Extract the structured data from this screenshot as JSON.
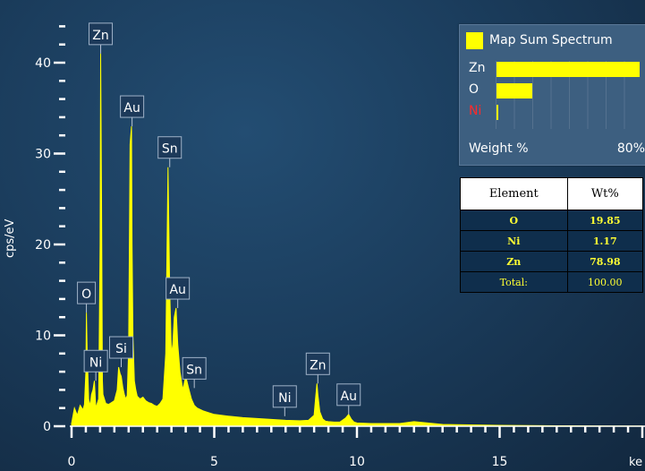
{
  "chart_data": {
    "type": "line",
    "title": "",
    "xlabel": "ke",
    "ylabel": "cps/eV",
    "xlim": [
      0,
      20
    ],
    "ylim": [
      0,
      45
    ],
    "x_ticks": [
      0,
      5,
      10,
      15
    ],
    "y_ticks": [
      0,
      10,
      20,
      30,
      40
    ],
    "series": [
      {
        "name": "Map Sum Spectrum",
        "color": "#ffff00",
        "x": [
          0.0,
          0.1,
          0.2,
          0.3,
          0.4,
          0.45,
          0.5,
          0.52,
          0.55,
          0.6,
          0.65,
          0.7,
          0.75,
          0.8,
          0.85,
          0.9,
          0.95,
          1.0,
          1.02,
          1.05,
          1.08,
          1.1,
          1.15,
          1.2,
          1.3,
          1.4,
          1.5,
          1.6,
          1.65,
          1.7,
          1.74,
          1.8,
          1.85,
          1.9,
          1.95,
          2.0,
          2.05,
          2.1,
          2.12,
          2.15,
          2.2,
          2.25,
          2.3,
          2.4,
          2.5,
          2.6,
          2.7,
          2.8,
          2.9,
          3.0,
          3.1,
          3.2,
          3.3,
          3.38,
          3.44,
          3.5,
          3.55,
          3.6,
          3.66,
          3.72,
          3.8,
          3.9,
          4.0,
          4.1,
          4.2,
          4.3,
          4.4,
          4.6,
          4.8,
          5.0,
          5.5,
          6.0,
          6.5,
          7.0,
          7.5,
          8.0,
          8.3,
          8.5,
          8.55,
          8.6,
          8.63,
          8.7,
          8.8,
          8.9,
          9.0,
          9.2,
          9.4,
          9.6,
          9.71,
          9.8,
          9.9,
          10.0,
          10.5,
          11.0,
          11.5,
          12.0,
          13.0,
          14.0,
          15.0,
          16.0,
          17.0,
          18.0,
          19.0,
          20.0
        ],
        "y": [
          0.3,
          2.0,
          1.2,
          2.3,
          1.8,
          2.4,
          6.0,
          12.5,
          8.0,
          3.0,
          2.2,
          3.5,
          4.0,
          5.0,
          2.0,
          2.5,
          3.0,
          20.0,
          41.0,
          25.0,
          5.0,
          3.5,
          3.0,
          2.5,
          2.4,
          2.6,
          2.8,
          4.0,
          6.5,
          5.8,
          5.5,
          4.2,
          3.5,
          3.0,
          3.4,
          8.5,
          31.0,
          33.0,
          20.0,
          10.0,
          5.0,
          4.0,
          3.3,
          3.0,
          3.2,
          2.8,
          2.6,
          2.5,
          2.3,
          2.2,
          2.5,
          3.0,
          8.0,
          28.5,
          15.0,
          8.0,
          9.0,
          12.0,
          13.0,
          9.0,
          6.0,
          4.0,
          5.5,
          4.2,
          3.0,
          2.3,
          2.0,
          1.7,
          1.5,
          1.3,
          1.1,
          0.95,
          0.85,
          0.75,
          0.65,
          0.6,
          0.65,
          1.2,
          3.0,
          4.7,
          3.5,
          1.6,
          0.8,
          0.55,
          0.5,
          0.45,
          0.45,
          0.9,
          1.3,
          0.8,
          0.45,
          0.35,
          0.3,
          0.3,
          0.3,
          0.5,
          0.2,
          0.15,
          0.1,
          0.08,
          0.05,
          0.04,
          0.03,
          0.02
        ]
      }
    ],
    "peak_labels": [
      {
        "text": "Zn",
        "x": 1.02,
        "y": 41.0
      },
      {
        "text": "Au",
        "x": 2.12,
        "y": 33.0
      },
      {
        "text": "Sn",
        "x": 3.44,
        "y": 28.5
      },
      {
        "text": "O",
        "x": 0.52,
        "y": 12.5
      },
      {
        "text": "Au",
        "x": 3.72,
        "y": 13.0
      },
      {
        "text": "Ni",
        "x": 0.85,
        "y": 5.0
      },
      {
        "text": "Si",
        "x": 1.74,
        "y": 6.5
      },
      {
        "text": "Sn",
        "x": 4.3,
        "y": 4.2
      },
      {
        "text": "Ni",
        "x": 7.47,
        "y": 1.1
      },
      {
        "text": "Zn",
        "x": 8.63,
        "y": 4.7
      },
      {
        "text": "Au",
        "x": 9.71,
        "y": 1.3
      }
    ],
    "grid": false,
    "legend": {
      "title": "Map Sum Spectrum",
      "placement": "top-right",
      "axis_label": "Weight %",
      "axis_max_label": "80%",
      "axis_max": 80,
      "entries": [
        {
          "element": "Zn",
          "value": 78.98,
          "color": "#ffffff"
        },
        {
          "element": "O",
          "value": 19.85,
          "color": "#ffffff"
        },
        {
          "element": "Ni",
          "value": 1.17,
          "color": "#ff2a2a"
        }
      ]
    },
    "table": {
      "headers": [
        "Element",
        "Wt%"
      ],
      "rows": [
        {
          "element": "O",
          "wt": "19.85"
        },
        {
          "element": "Ni",
          "wt": "1.17"
        },
        {
          "element": "Zn",
          "wt": "78.98"
        }
      ],
      "total_label": "Total:",
      "total_value": "100.00"
    }
  }
}
